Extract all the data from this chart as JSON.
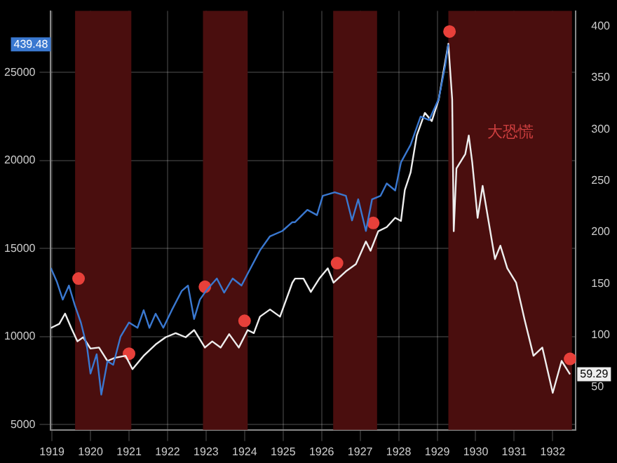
{
  "chart_data": {
    "type": "line",
    "xlim": [
      1919.47,
      1933.1
    ],
    "ylim": [
      4700,
      28500
    ],
    "y2lim": [
      8,
      415
    ],
    "xticks": [
      {
        "value": 1919.5,
        "label": "1919"
      },
      {
        "value": 1920.5,
        "label": "1920"
      },
      {
        "value": 1921.5,
        "label": "1921"
      },
      {
        "value": 1922.5,
        "label": "1922"
      },
      {
        "value": 1923.5,
        "label": "1923"
      },
      {
        "value": 1924.5,
        "label": "1924"
      },
      {
        "value": 1925.5,
        "label": "1925"
      },
      {
        "value": 1926.5,
        "label": "1926"
      },
      {
        "value": 1927.5,
        "label": "1927"
      },
      {
        "value": 1928.5,
        "label": "1928"
      },
      {
        "value": 1929.5,
        "label": "1929"
      },
      {
        "value": 1930.5,
        "label": "1930"
      },
      {
        "value": 1931.5,
        "label": "1931"
      },
      {
        "value": 1932.5,
        "label": "1932"
      }
    ],
    "yticks": [
      5000,
      10000,
      15000,
      20000,
      25000
    ],
    "y2ticks": [
      50,
      100,
      150,
      200,
      250,
      300,
      350,
      400
    ],
    "grid": true,
    "legend": false,
    "marker": "none",
    "line_style": "solid",
    "series": [
      {
        "color": "#3a78d0",
        "axis": "y",
        "x": [
          1919.47,
          1919.63,
          1919.78,
          1919.94,
          1920.09,
          1920.25,
          1920.41,
          1920.5,
          1920.66,
          1920.78,
          1920.94,
          1921.09,
          1921.28,
          1921.5,
          1921.72,
          1921.88,
          1922.03,
          1922.19,
          1922.39,
          1922.61,
          1922.87,
          1923.03,
          1923.19,
          1923.34,
          1923.5,
          1923.78,
          1923.97,
          1924.19,
          1924.42,
          1924.61,
          1924.9,
          1925.16,
          1925.48,
          1925.74,
          1925.81,
          1926.13,
          1926.38,
          1926.53,
          1926.84,
          1927.13,
          1927.29,
          1927.45,
          1927.65,
          1927.81,
          1928.03,
          1928.19,
          1928.41,
          1928.56,
          1928.81,
          1929.07,
          1929.29,
          1929.54,
          1929.71,
          1929.79
        ],
        "values": [
          13900,
          13100,
          12100,
          12900,
          11800,
          10800,
          9400,
          7900,
          9000,
          6700,
          8600,
          8400,
          10000,
          10800,
          10500,
          11500,
          10500,
          11300,
          10500,
          11500,
          12600,
          12900,
          11000,
          12100,
          12600,
          13300,
          12500,
          13300,
          12900,
          13700,
          14900,
          15700,
          16000,
          16500,
          16500,
          17200,
          16900,
          18000,
          18200,
          18000,
          16600,
          17800,
          16000,
          17800,
          18000,
          18700,
          18300,
          19900,
          20900,
          22500,
          22300,
          23500,
          25400,
          26600
        ]
      },
      {
        "color": "#eeeeee",
        "axis": "y2",
        "x": [
          1919.47,
          1919.69,
          1919.84,
          1920.0,
          1920.16,
          1920.31,
          1920.5,
          1920.72,
          1920.94,
          1921.13,
          1921.41,
          1921.59,
          1921.88,
          1922.19,
          1922.45,
          1922.71,
          1922.97,
          1923.19,
          1923.47,
          1923.66,
          1923.88,
          1924.1,
          1924.35,
          1924.58,
          1924.74,
          1924.9,
          1925.16,
          1925.42,
          1925.74,
          1925.81,
          1926.03,
          1926.22,
          1926.44,
          1926.66,
          1926.81,
          1927.13,
          1927.39,
          1927.65,
          1927.77,
          1927.97,
          1928.19,
          1928.41,
          1928.56,
          1928.66,
          1928.81,
          1928.97,
          1929.18,
          1929.36,
          1929.54,
          1929.64,
          1929.79,
          1929.89,
          1929.93,
          1930.0,
          1930.23,
          1930.32,
          1930.41,
          1930.55,
          1930.68,
          1930.86,
          1931.0,
          1931.14,
          1931.32,
          1931.55,
          1931.77,
          1932.0,
          1932.23,
          1932.5,
          1932.73,
          1932.95
        ],
        "values": [
          107,
          111,
          121,
          107,
          94,
          98,
          87,
          88,
          75,
          78,
          80,
          67,
          80,
          91,
          98,
          102,
          98,
          105,
          88,
          94,
          88,
          101,
          88,
          105,
          102,
          118,
          125,
          118,
          151,
          155,
          155,
          142,
          155,
          165,
          151,
          162,
          169,
          191,
          182,
          201,
          205,
          214,
          211,
          241,
          258,
          294,
          316,
          308,
          329,
          351,
          383,
          329,
          201,
          262,
          276,
          294,
          268,
          214,
          245,
          205,
          174,
          187,
          165,
          151,
          115,
          80,
          88,
          44,
          75,
          62
        ]
      },
      {
        "type": "scatter",
        "color": "#e8403a",
        "axis": "y2",
        "marker": "circle",
        "x": [
          1920.19,
          1921.5,
          1923.47,
          1924.5,
          1926.9,
          1927.84,
          1929.82,
          1932.95
        ],
        "values": [
          155,
          82,
          147,
          114,
          170,
          209,
          395,
          77
        ]
      }
    ],
    "bands": [
      {
        "axis": "x",
        "from": 1920.1,
        "to": 1921.56,
        "color": "#4a0e0e"
      },
      {
        "axis": "x",
        "from": 1923.42,
        "to": 1924.58,
        "color": "#4a0e0e"
      },
      {
        "axis": "x",
        "from": 1926.8,
        "to": 1927.94,
        "color": "#4a0e0e"
      },
      {
        "axis": "x",
        "from": 1929.79,
        "to": 1933.0,
        "color": "#4a0e0e",
        "label": "大恐慌"
      }
    ],
    "annotations": [
      "439.48",
      "59.29"
    ]
  }
}
